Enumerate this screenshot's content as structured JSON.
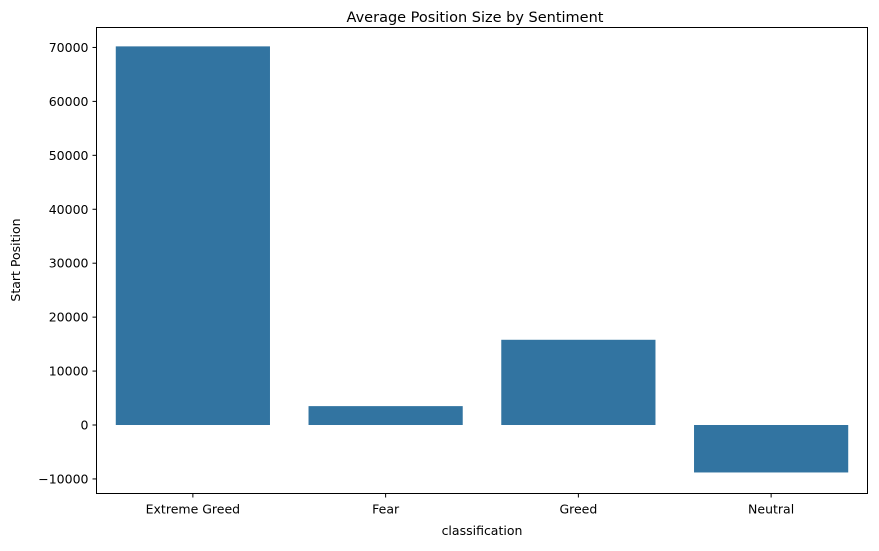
{
  "chart_data": {
    "type": "bar",
    "title": "Average Position Size by Sentiment",
    "xlabel": "classification",
    "ylabel": "Start Position",
    "categories": [
      "Extreme Greed",
      "Fear",
      "Greed",
      "Neutral"
    ],
    "values": [
      70200,
      3500,
      15800,
      -8800
    ],
    "ylim": [
      -12700,
      73700
    ],
    "yticks": [
      -10000,
      0,
      10000,
      20000,
      30000,
      40000,
      50000,
      60000,
      70000
    ],
    "ytick_labels": [
      "−10000",
      "0",
      "10000",
      "20000",
      "30000",
      "40000",
      "50000",
      "60000",
      "70000"
    ],
    "grid": false,
    "legend": "none",
    "bar_color": "#3274a1"
  }
}
